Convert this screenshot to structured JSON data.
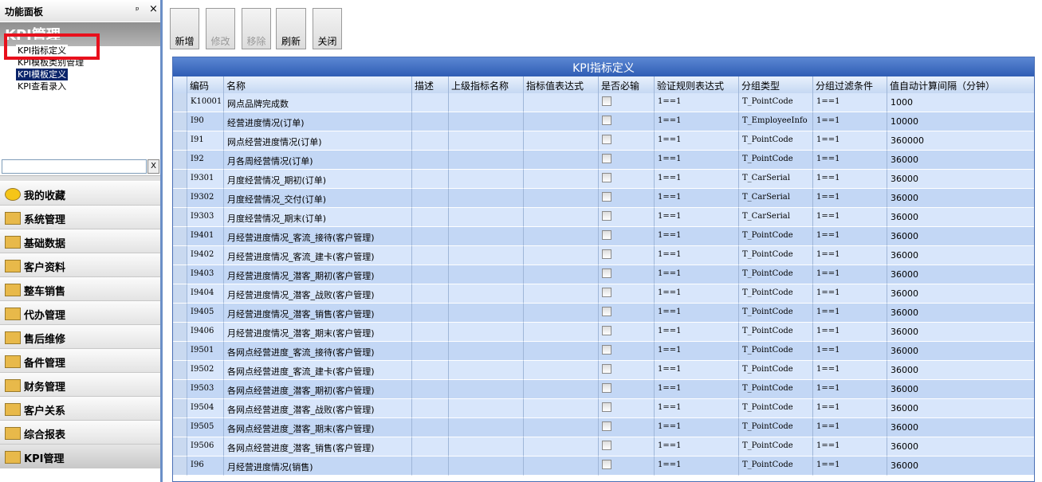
{
  "left_panel": {
    "title": "功能面板",
    "pin": "ᵖ",
    "close": "×",
    "group_title": "KPI管理",
    "tree": [
      "KPI指标定义",
      "KPI模板类别管理",
      "KPI模板定义",
      "KPI查看录入"
    ],
    "search_clear": "X",
    "nav": [
      "我的收藏",
      "系统管理",
      "基础数据",
      "客户资料",
      "整车销售",
      "代办管理",
      "售后维修",
      "备件管理",
      "财务管理",
      "客户关系",
      "综合报表",
      "KPI管理"
    ]
  },
  "toolbar": [
    "新增",
    "修改",
    "移除",
    "刷新",
    "关闭"
  ],
  "grid": {
    "title": "KPI指标定义",
    "columns": [
      "编码",
      "名称",
      "描述",
      "上级指标名称",
      "指标值表达式",
      "是否必输",
      "验证规则表达式",
      "分组类型",
      "分组过滤条件",
      "值自动计算间隔（分钟）"
    ],
    "rows": [
      {
        "code": "K10001",
        "name": "网点品牌完成数",
        "validation": "1==1",
        "group_type": "T_PointCode",
        "group_filter": "1==1",
        "interval": "1000"
      },
      {
        "code": "I90",
        "name": "经营进度情况(订单)",
        "validation": "1==1",
        "group_type": "T_EmployeeInfo",
        "group_filter": "1==1",
        "interval": "10000"
      },
      {
        "code": "I91",
        "name": "网点经营进度情况(订单)",
        "validation": "1==1",
        "group_type": "T_PointCode",
        "group_filter": "1==1",
        "interval": "360000"
      },
      {
        "code": "I92",
        "name": "月各周经营情况(订单)",
        "validation": "1==1",
        "group_type": "T_PointCode",
        "group_filter": "1==1",
        "interval": "36000"
      },
      {
        "code": "I9301",
        "name": "月度经营情况_期初(订单)",
        "validation": "1==1",
        "group_type": "T_CarSerial",
        "group_filter": "1==1",
        "interval": "36000"
      },
      {
        "code": "I9302",
        "name": "月度经营情况_交付(订单)",
        "validation": "1==1",
        "group_type": "T_CarSerial",
        "group_filter": "1==1",
        "interval": "36000"
      },
      {
        "code": "I9303",
        "name": "月度经营情况_期末(订单)",
        "validation": "1==1",
        "group_type": "T_CarSerial",
        "group_filter": "1==1",
        "interval": "36000"
      },
      {
        "code": "I9401",
        "name": "月经营进度情况_客流_接待(客户管理)",
        "validation": "1==1",
        "group_type": "T_PointCode",
        "group_filter": "1==1",
        "interval": "36000"
      },
      {
        "code": "I9402",
        "name": "月经营进度情况_客流_建卡(客户管理)",
        "validation": "1==1",
        "group_type": "T_PointCode",
        "group_filter": "1==1",
        "interval": "36000"
      },
      {
        "code": "I9403",
        "name": "月经营进度情况_潜客_期初(客户管理)",
        "validation": "1==1",
        "group_type": "T_PointCode",
        "group_filter": "1==1",
        "interval": "36000"
      },
      {
        "code": "I9404",
        "name": "月经营进度情况_潜客_战败(客户管理)",
        "validation": "1==1",
        "group_type": "T_PointCode",
        "group_filter": "1==1",
        "interval": "36000"
      },
      {
        "code": "I9405",
        "name": "月经营进度情况_潜客_销售(客户管理)",
        "validation": "1==1",
        "group_type": "T_PointCode",
        "group_filter": "1==1",
        "interval": "36000"
      },
      {
        "code": "I9406",
        "name": "月经营进度情况_潜客_期末(客户管理)",
        "validation": "1==1",
        "group_type": "T_PointCode",
        "group_filter": "1==1",
        "interval": "36000"
      },
      {
        "code": "I9501",
        "name": "各网点经营进度_客流_接待(客户管理)",
        "validation": "1==1",
        "group_type": "T_PointCode",
        "group_filter": "1==1",
        "interval": "36000"
      },
      {
        "code": "I9502",
        "name": "各网点经营进度_客流_建卡(客户管理)",
        "validation": "1==1",
        "group_type": "T_PointCode",
        "group_filter": "1==1",
        "interval": "36000"
      },
      {
        "code": "I9503",
        "name": "各网点经营进度_潜客_期初(客户管理)",
        "validation": "1==1",
        "group_type": "T_PointCode",
        "group_filter": "1==1",
        "interval": "36000"
      },
      {
        "code": "I9504",
        "name": "各网点经营进度_潜客_战败(客户管理)",
        "validation": "1==1",
        "group_type": "T_PointCode",
        "group_filter": "1==1",
        "interval": "36000"
      },
      {
        "code": "I9505",
        "name": "各网点经营进度_潜客_期末(客户管理)",
        "validation": "1==1",
        "group_type": "T_PointCode",
        "group_filter": "1==1",
        "interval": "36000"
      },
      {
        "code": "I9506",
        "name": "各网点经营进度_潜客_销售(客户管理)",
        "validation": "1==1",
        "group_type": "T_PointCode",
        "group_filter": "1==1",
        "interval": "36000"
      },
      {
        "code": "I96",
        "name": "月经营进度情况(销售)",
        "validation": "1==1",
        "group_type": "T_PointCode",
        "group_filter": "1==1",
        "interval": "36000"
      }
    ]
  }
}
